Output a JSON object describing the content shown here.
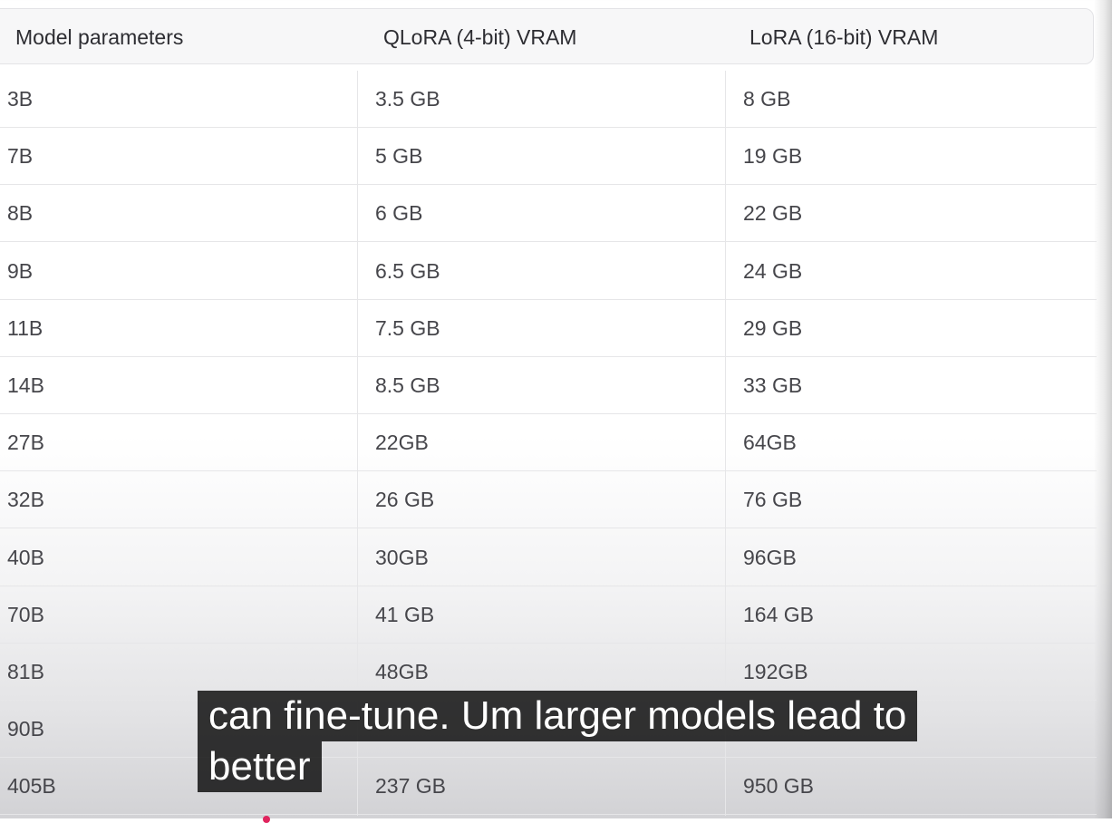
{
  "table": {
    "headers": [
      "Model parameters",
      "QLoRA (4-bit) VRAM",
      "LoRA (16-bit) VRAM"
    ],
    "rows": [
      [
        "3B",
        "3.5 GB",
        "8 GB"
      ],
      [
        "7B",
        "5 GB",
        "19 GB"
      ],
      [
        "8B",
        "6 GB",
        "22 GB"
      ],
      [
        "9B",
        "6.5 GB",
        "24 GB"
      ],
      [
        "11B",
        "7.5 GB",
        "29 GB"
      ],
      [
        "14B",
        "8.5 GB",
        "33 GB"
      ],
      [
        "27B",
        "22GB",
        "64GB"
      ],
      [
        "32B",
        "26 GB",
        "76 GB"
      ],
      [
        "40B",
        "30GB",
        "96GB"
      ],
      [
        "70B",
        "41 GB",
        "164 GB"
      ],
      [
        "81B",
        "48GB",
        "192GB"
      ],
      [
        "90B",
        "",
        ""
      ],
      [
        "405B",
        "237 GB",
        "950 GB"
      ]
    ]
  },
  "caption": {
    "lines": [
      "can fine-tune. Um larger models lead to",
      "better"
    ]
  }
}
